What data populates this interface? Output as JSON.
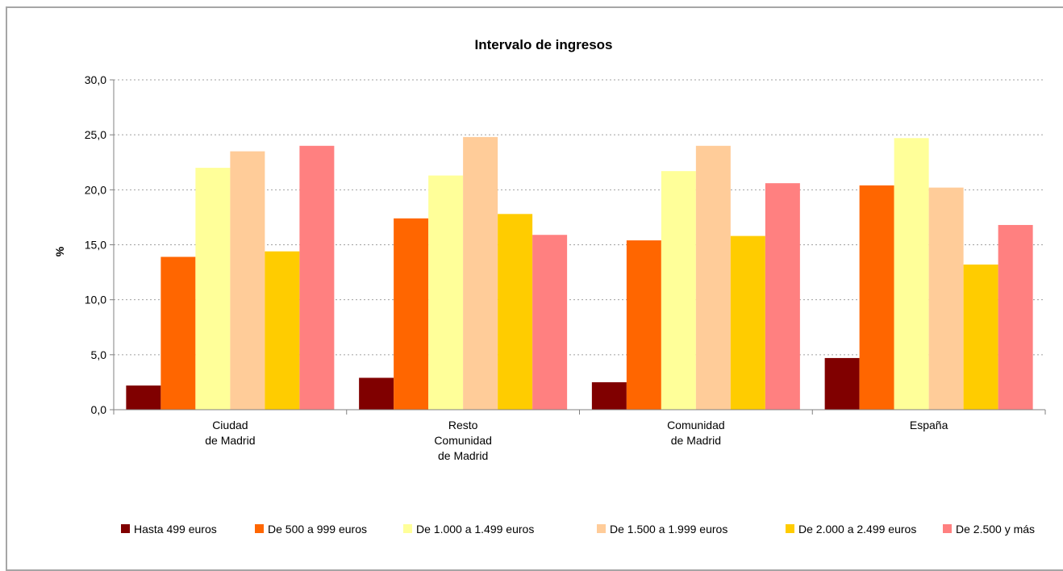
{
  "chart_data": {
    "type": "bar",
    "title": "Intervalo de ingresos",
    "xlabel": "",
    "ylabel": "%",
    "ylim": [
      0,
      30
    ],
    "yticks": [
      "0,0",
      "5,0",
      "10,0",
      "15,0",
      "20,0",
      "25,0",
      "30,0"
    ],
    "grid": true,
    "legend_position": "bottom",
    "categories": [
      [
        "Ciudad",
        "de Madrid"
      ],
      [
        "Resto",
        "Comunidad",
        "de Madrid"
      ],
      [
        "Comunidad",
        "de Madrid"
      ],
      [
        "España"
      ]
    ],
    "series": [
      {
        "name": "Hasta 499 euros",
        "color": "#800000",
        "values": [
          2.2,
          2.9,
          2.5,
          4.7
        ]
      },
      {
        "name": "De 500 a 999 euros",
        "color": "#ff6600",
        "values": [
          13.9,
          17.4,
          15.4,
          20.4
        ]
      },
      {
        "name": "De 1.000 a 1.499 euros",
        "color": "#ffff99",
        "values": [
          22.0,
          21.3,
          21.7,
          24.7
        ]
      },
      {
        "name": "De 1.500 a 1.999 euros",
        "color": "#ffcc99",
        "values": [
          23.5,
          24.8,
          24.0,
          20.2
        ]
      },
      {
        "name": "De 2.000 a 2.499 euros",
        "color": "#ffcc00",
        "values": [
          14.4,
          17.8,
          15.8,
          13.2
        ]
      },
      {
        "name": "De 2.500 y más",
        "color": "#ff8080",
        "values": [
          24.0,
          15.9,
          20.6,
          16.8
        ]
      }
    ]
  }
}
